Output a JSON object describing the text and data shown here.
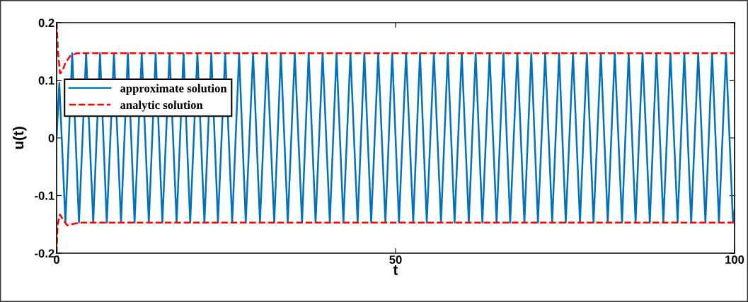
{
  "chart_data": {
    "type": "line",
    "xlabel": "t",
    "ylabel": "u(t)",
    "xlim": [
      0,
      100
    ],
    "xticks": [
      0,
      50,
      100
    ],
    "ylim": [
      -0.2,
      0.2
    ],
    "yticks": [
      {
        "value": -0.2,
        "label": "-0.2"
      },
      {
        "value": -0.1,
        "label": "-0.1"
      },
      0,
      0.1,
      0.2
    ],
    "grid": false,
    "legend": "top left",
    "line_style": "solid",
    "marker": "none",
    "series": [
      {
        "name": "approximate solution",
        "color": "#0072bd",
        "x": [
          0,
          0.4,
          1.3,
          2.3,
          3.3,
          4.35,
          5.4,
          6.4,
          7.4,
          8.46,
          9.5,
          10.51,
          11.5,
          12.56,
          13.6,
          14.61,
          15.6,
          16.66,
          17.7,
          18.72,
          19.7,
          20.77,
          21.8,
          22.82,
          23.8,
          24.87,
          25.9,
          26.92,
          27.9,
          28.98,
          30.0,
          31.03,
          32.1,
          33.08,
          34.1,
          35.13,
          36.2,
          37.18,
          38.2,
          39.24,
          40.3,
          41.29,
          42.3,
          43.34,
          44.4,
          45.39,
          46.4,
          47.44,
          48.5,
          49.5,
          50.5,
          51.55,
          52.6,
          53.6,
          54.6,
          55.65,
          56.7,
          57.7,
          58.7,
          59.76,
          60.8,
          61.81,
          62.8,
          63.86,
          64.9,
          65.91,
          66.9,
          67.96,
          69.0,
          70.02,
          71.0,
          72.07,
          73.1,
          74.12,
          75.1,
          76.17,
          77.2,
          78.22,
          79.2,
          80.28,
          81.3,
          82.33,
          83.4,
          84.38,
          85.4,
          86.43,
          87.5,
          88.48,
          89.5,
          90.54,
          91.6,
          92.59,
          93.6,
          94.64,
          95.7,
          96.69,
          97.7,
          98.74,
          99.77,
          100
        ],
        "values": [
          0,
          0.095,
          -0.147,
          0.147,
          -0.147,
          0.147,
          -0.147,
          0.147,
          -0.147,
          0.147,
          -0.147,
          0.147,
          -0.147,
          0.147,
          -0.147,
          0.147,
          -0.147,
          0.147,
          -0.147,
          0.147,
          -0.147,
          0.147,
          -0.147,
          0.147,
          -0.147,
          0.147,
          -0.147,
          0.147,
          -0.147,
          0.147,
          -0.147,
          0.147,
          -0.147,
          0.147,
          -0.147,
          0.147,
          -0.147,
          0.147,
          -0.147,
          0.147,
          -0.147,
          0.147,
          -0.147,
          0.147,
          -0.147,
          0.147,
          -0.147,
          0.147,
          -0.147,
          0.147,
          -0.147,
          0.147,
          -0.147,
          0.147,
          -0.147,
          0.147,
          -0.147,
          0.147,
          -0.147,
          0.147,
          -0.147,
          0.147,
          -0.147,
          0.147,
          -0.147,
          0.147,
          -0.147,
          0.147,
          -0.147,
          0.147,
          -0.147,
          0.147,
          -0.147,
          0.147,
          -0.147,
          0.147,
          -0.147,
          0.147,
          -0.147,
          0.147,
          -0.147,
          0.147,
          -0.147,
          0.147,
          -0.147,
          0.147,
          -0.147,
          0.147,
          -0.147,
          0.147,
          -0.147,
          0.147,
          -0.147,
          0.147,
          -0.147,
          0.147,
          -0.147,
          0.147,
          -0.147,
          -0.125
        ]
      },
      {
        "name": "analytic solution",
        "color": "#ff0000",
        "line_style": "dashed",
        "x": [
          0,
          0.2,
          0.5,
          0.8,
          1.3,
          2,
          3,
          100
        ],
        "values": [
          0.2,
          0.15,
          0.112,
          0.115,
          0.13,
          0.142,
          0.147,
          0.147
        ]
      },
      {
        "color": "#ff0000",
        "line_style": "dashed",
        "x": [
          0,
          0.15,
          0.5,
          1,
          1.6,
          2.5,
          3.5,
          100
        ],
        "values": [
          -0.2,
          -0.15,
          -0.133,
          -0.143,
          -0.152,
          -0.149,
          -0.147,
          -0.147
        ]
      }
    ]
  }
}
